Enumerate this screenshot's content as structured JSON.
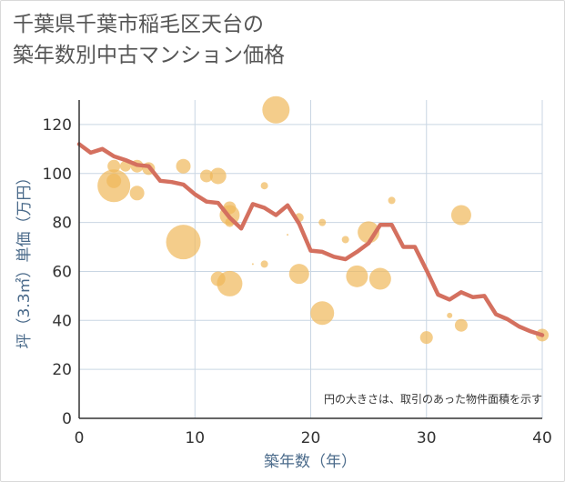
{
  "title": {
    "line1": "千葉県千葉市稲毛区天台の",
    "line2": "築年数別中古マンション価格"
  },
  "note": "円の大きさは、取引のあった物件面積を示す",
  "colors": {
    "line": "#d4705f",
    "bubble": "#f0b85a",
    "grid": "#c9d6e3",
    "axis": "#333333"
  },
  "chart_data": {
    "type": "scatter",
    "xlabel": "築年数（年）",
    "ylabel": "坪（3.3㎡）単価（万円）",
    "xlim": [
      0,
      40
    ],
    "ylim": [
      0,
      130
    ],
    "x_ticks": [
      "0",
      "10",
      "20",
      "30",
      "40"
    ],
    "y_ticks": [
      "0",
      "20",
      "40",
      "60",
      "80",
      "100",
      "120"
    ],
    "grid": true,
    "line_series": {
      "x": [
        0,
        1,
        2,
        3,
        4,
        5,
        6,
        7,
        8,
        9,
        10,
        11,
        12,
        13,
        14,
        15,
        16,
        17,
        18,
        19,
        20,
        21,
        22,
        23,
        24,
        25,
        26,
        27,
        28,
        29,
        30,
        31,
        32,
        33,
        34,
        35,
        36,
        37,
        38,
        39,
        40
      ],
      "y": [
        112,
        108.5,
        110,
        107,
        105.5,
        103.5,
        103,
        97,
        96.5,
        95.5,
        91.5,
        88.5,
        88,
        82,
        77.5,
        87.5,
        86,
        83,
        87,
        79.5,
        68.5,
        68,
        66,
        65,
        68,
        71.5,
        79,
        79,
        70,
        70,
        60.5,
        50.5,
        48.5,
        51.5,
        49.5,
        50,
        42.5,
        40.5,
        37.5,
        35.5,
        34
      ]
    },
    "bubbles": [
      {
        "x": 3,
        "y": 95,
        "r": 18
      },
      {
        "x": 3,
        "y": 97,
        "r": 8
      },
      {
        "x": 3,
        "y": 103,
        "r": 7
      },
      {
        "x": 4,
        "y": 103,
        "r": 6
      },
      {
        "x": 5,
        "y": 103,
        "r": 7
      },
      {
        "x": 5,
        "y": 92,
        "r": 8
      },
      {
        "x": 6,
        "y": 102,
        "r": 7
      },
      {
        "x": 9,
        "y": 103,
        "r": 8
      },
      {
        "x": 9,
        "y": 72,
        "r": 19
      },
      {
        "x": 11,
        "y": 99,
        "r": 7
      },
      {
        "x": 12,
        "y": 99,
        "r": 9
      },
      {
        "x": 12,
        "y": 57,
        "r": 8
      },
      {
        "x": 13,
        "y": 86,
        "r": 7
      },
      {
        "x": 13,
        "y": 83,
        "r": 11
      },
      {
        "x": 13,
        "y": 80,
        "r": 5
      },
      {
        "x": 13,
        "y": 55,
        "r": 14
      },
      {
        "x": 15,
        "y": 63,
        "r": 1
      },
      {
        "x": 16,
        "y": 95,
        "r": 4
      },
      {
        "x": 16,
        "y": 63,
        "r": 4
      },
      {
        "x": 17,
        "y": 126,
        "r": 15
      },
      {
        "x": 18,
        "y": 75,
        "r": 1
      },
      {
        "x": 19,
        "y": 82,
        "r": 5
      },
      {
        "x": 19,
        "y": 59,
        "r": 11
      },
      {
        "x": 21,
        "y": 80,
        "r": 4
      },
      {
        "x": 21,
        "y": 43,
        "r": 13
      },
      {
        "x": 23,
        "y": 73,
        "r": 4
      },
      {
        "x": 24,
        "y": 58,
        "r": 12
      },
      {
        "x": 25,
        "y": 76,
        "r": 12
      },
      {
        "x": 26,
        "y": 57,
        "r": 12
      },
      {
        "x": 27,
        "y": 89,
        "r": 4
      },
      {
        "x": 30,
        "y": 33,
        "r": 7
      },
      {
        "x": 32,
        "y": 42,
        "r": 3
      },
      {
        "x": 33,
        "y": 83,
        "r": 11
      },
      {
        "x": 33,
        "y": 38,
        "r": 7
      },
      {
        "x": 40,
        "y": 34,
        "r": 7
      }
    ]
  }
}
